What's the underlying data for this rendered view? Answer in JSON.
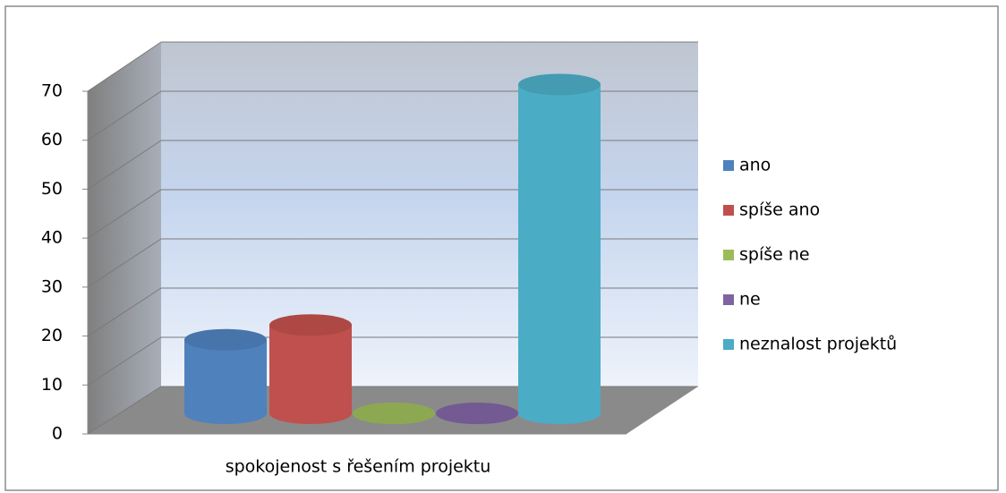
{
  "chart_data": {
    "type": "bar3d-cylinder",
    "categories": [
      "spokojenost s řešením projektu"
    ],
    "series": [
      {
        "name": "ano",
        "color": "#4f81bd",
        "values": [
          15
        ]
      },
      {
        "name": "spíše ano",
        "color": "#c0504d",
        "values": [
          18
        ]
      },
      {
        "name": "spíše ne",
        "color": "#9bbb59",
        "values": [
          0
        ]
      },
      {
        "name": "ne",
        "color": "#8064a2",
        "values": [
          0
        ]
      },
      {
        "name": "neznalost projektů",
        "color": "#4bacc6",
        "values": [
          67
        ]
      }
    ],
    "ylim": [
      0,
      70
    ],
    "yticks": [
      0,
      10,
      20,
      30,
      40,
      50,
      60,
      70
    ],
    "grid": true,
    "legend": "right"
  }
}
